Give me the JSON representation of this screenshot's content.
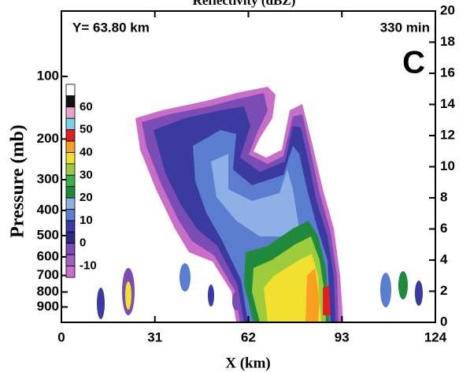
{
  "chart_data": {
    "type": "contour",
    "title": "Reflectivity (dBZ)",
    "annotations": [
      "Y=   63.80  km",
      "330  min"
    ],
    "panel_label": "C",
    "x_label": "X (km)",
    "y_label": "Pressure (mb)",
    "xlim": [
      0,
      124
    ],
    "xticks": [
      0,
      31,
      62,
      93,
      124
    ],
    "yticks": [
      100,
      200,
      300,
      400,
      500,
      600,
      700,
      800,
      900
    ],
    "y2lim": [
      0,
      20
    ],
    "y2ticks": [
      0,
      2,
      4,
      6,
      8,
      10,
      12,
      14,
      16,
      18,
      20
    ],
    "colorbar": {
      "labels": [
        60,
        50,
        40,
        30,
        20,
        10,
        0,
        -10
      ],
      "colors": [
        "#ffffff",
        "#111111",
        "#e9a3cd",
        "#7fd0e6",
        "#e02020",
        "#f8a020",
        "#f2e030",
        "#9ccc3c",
        "#3cb04a",
        "#1f8a3c",
        "#8fb0e6",
        "#5b7dd0",
        "#3a3aa0",
        "#2a2a80",
        "#7a4cb4",
        "#a060c0",
        "#c86ec8"
      ]
    }
  }
}
